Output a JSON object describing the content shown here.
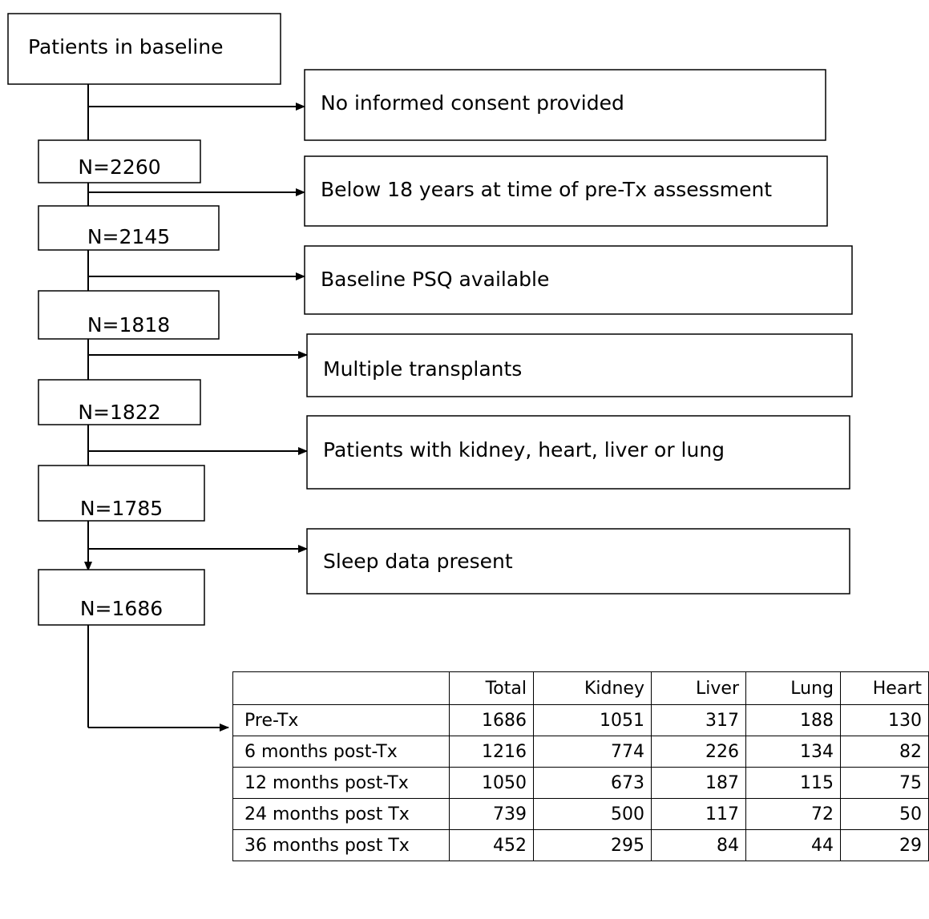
{
  "start": {
    "label": "Patients in baseline"
  },
  "nodes": [
    {
      "label": "N=2260"
    },
    {
      "label": "N=2145"
    },
    {
      "label": "N=1818"
    },
    {
      "label": "N=1822"
    },
    {
      "label": "N=1785"
    },
    {
      "label": "N=1686"
    }
  ],
  "exclusions": [
    {
      "label": "No informed consent provided"
    },
    {
      "label": "Below 18 years at time of pre-Tx assessment"
    },
    {
      "label": "Baseline PSQ available"
    },
    {
      "label": "Multiple transplants"
    },
    {
      "label": "Patients with kidney, heart, liver or lung"
    },
    {
      "label": "Sleep data present"
    }
  ],
  "table": {
    "header": [
      "Total",
      "Kidney",
      "Liver",
      "Lung",
      "Heart"
    ],
    "rows": [
      [
        "Pre-Tx",
        1686,
        1051,
        317,
        188,
        130
      ],
      [
        "6 months post-Tx",
        1216,
        774,
        226,
        134,
        82
      ],
      [
        "12 months post-Tx",
        1050,
        673,
        187,
        115,
        75
      ],
      [
        "24 months post Tx",
        739,
        500,
        117,
        72,
        50
      ],
      [
        "36 months post Tx",
        452,
        295,
        84,
        44,
        29
      ]
    ]
  }
}
